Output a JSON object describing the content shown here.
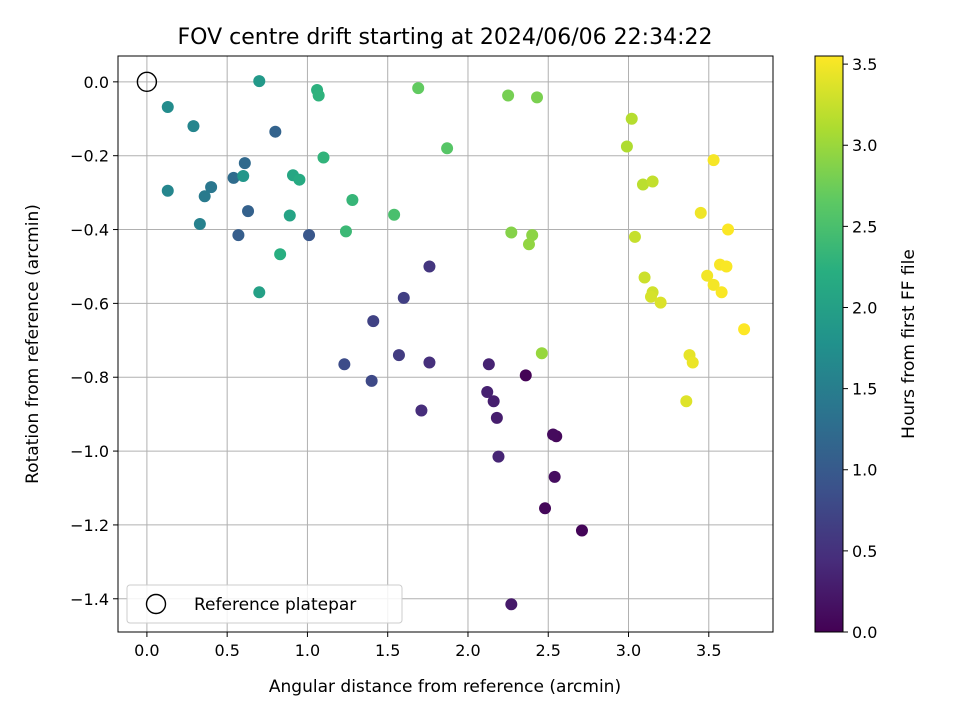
{
  "chart_data": {
    "type": "scatter",
    "title": "FOV centre drift starting at 2024/06/06 22:34:22",
    "xlabel": "Angular distance from reference (arcmin)",
    "ylabel": "Rotation from reference (arcmin)",
    "xlim": [
      -0.18,
      3.9
    ],
    "ylim": [
      -1.49,
      0.07
    ],
    "x_ticks": [
      0.0,
      0.5,
      1.0,
      1.5,
      2.0,
      2.5,
      3.0,
      3.5
    ],
    "x_tick_labels": [
      "0.0",
      "0.5",
      "1.0",
      "1.5",
      "2.0",
      "2.5",
      "3.0",
      "3.5"
    ],
    "y_ticks": [
      0.0,
      -0.2,
      -0.4,
      -0.6,
      -0.8,
      -1.0,
      -1.2,
      -1.4
    ],
    "y_tick_labels": [
      "0.0",
      "−0.2",
      "−0.4",
      "−0.6",
      "−0.8",
      "−1.0",
      "−1.2",
      "−1.4"
    ],
    "grid": true,
    "legend": {
      "placement": "lower-left",
      "label": "Reference platepar"
    },
    "reference_point": {
      "x": 0.0,
      "y": 0.0
    },
    "colorbar": {
      "label": "Hours from first FF file",
      "range": [
        0.0,
        3.55
      ],
      "colormap": "viridis",
      "ticks": [
        0.0,
        0.5,
        1.0,
        1.5,
        2.0,
        2.5,
        3.0,
        3.5
      ],
      "tick_labels": [
        "0.0",
        "0.5",
        "1.0",
        "1.5",
        "2.0",
        "2.5",
        "3.0",
        "3.5"
      ]
    },
    "points": [
      {
        "x": 2.36,
        "y": -0.795,
        "hours": 0.02
      },
      {
        "x": 2.71,
        "y": -1.215,
        "hours": 0.04
      },
      {
        "x": 2.48,
        "y": -1.155,
        "hours": 0.06
      },
      {
        "x": 2.55,
        "y": -0.96,
        "hours": 0.08
      },
      {
        "x": 2.53,
        "y": -0.955,
        "hours": 0.1
      },
      {
        "x": 2.54,
        "y": -1.07,
        "hours": 0.12
      },
      {
        "x": 2.27,
        "y": -1.415,
        "hours": 0.25
      },
      {
        "x": 2.18,
        "y": -0.91,
        "hours": 0.28
      },
      {
        "x": 2.16,
        "y": -0.865,
        "hours": 0.3
      },
      {
        "x": 2.12,
        "y": -0.84,
        "hours": 0.32
      },
      {
        "x": 2.13,
        "y": -0.765,
        "hours": 0.34
      },
      {
        "x": 2.19,
        "y": -1.015,
        "hours": 0.36
      },
      {
        "x": 1.71,
        "y": -0.89,
        "hours": 0.45
      },
      {
        "x": 1.76,
        "y": -0.76,
        "hours": 0.48
      },
      {
        "x": 1.76,
        "y": -0.5,
        "hours": 0.55
      },
      {
        "x": 1.57,
        "y": -0.74,
        "hours": 0.62
      },
      {
        "x": 1.6,
        "y": -0.585,
        "hours": 0.66
      },
      {
        "x": 1.41,
        "y": -0.648,
        "hours": 0.7
      },
      {
        "x": 1.4,
        "y": -0.81,
        "hours": 0.78
      },
      {
        "x": 1.23,
        "y": -0.765,
        "hours": 0.82
      },
      {
        "x": 1.01,
        "y": -0.415,
        "hours": 0.95
      },
      {
        "x": 0.57,
        "y": -0.415,
        "hours": 1.05
      },
      {
        "x": 0.63,
        "y": -0.35,
        "hours": 1.1
      },
      {
        "x": 0.8,
        "y": -0.135,
        "hours": 1.12
      },
      {
        "x": 0.61,
        "y": -0.22,
        "hours": 1.2
      },
      {
        "x": 0.54,
        "y": -0.26,
        "hours": 1.25
      },
      {
        "x": 0.4,
        "y": -0.285,
        "hours": 1.4
      },
      {
        "x": 0.36,
        "y": -0.31,
        "hours": 1.45
      },
      {
        "x": 0.33,
        "y": -0.385,
        "hours": 1.55
      },
      {
        "x": 0.29,
        "y": -0.12,
        "hours": 1.6
      },
      {
        "x": 0.13,
        "y": -0.295,
        "hours": 1.62
      },
      {
        "x": 0.13,
        "y": -0.068,
        "hours": 1.7
      },
      {
        "x": 0.6,
        "y": -0.255,
        "hours": 1.85
      },
      {
        "x": 0.7,
        "y": 0.002,
        "hours": 1.9
      },
      {
        "x": 0.7,
        "y": -0.57,
        "hours": 2.0
      },
      {
        "x": 0.89,
        "y": -0.362,
        "hours": 2.05
      },
      {
        "x": 0.91,
        "y": -0.253,
        "hours": 2.1
      },
      {
        "x": 0.95,
        "y": -0.265,
        "hours": 2.15
      },
      {
        "x": 0.83,
        "y": -0.467,
        "hours": 2.22
      },
      {
        "x": 1.06,
        "y": -0.022,
        "hours": 2.25
      },
      {
        "x": 1.07,
        "y": -0.037,
        "hours": 2.28
      },
      {
        "x": 1.1,
        "y": -0.205,
        "hours": 2.3
      },
      {
        "x": 1.28,
        "y": -0.32,
        "hours": 2.34
      },
      {
        "x": 1.24,
        "y": -0.405,
        "hours": 2.38
      },
      {
        "x": 1.54,
        "y": -0.36,
        "hours": 2.5
      },
      {
        "x": 1.87,
        "y": -0.18,
        "hours": 2.6
      },
      {
        "x": 1.69,
        "y": -0.017,
        "hours": 2.68
      },
      {
        "x": 2.25,
        "y": -0.037,
        "hours": 2.8
      },
      {
        "x": 2.43,
        "y": -0.042,
        "hours": 2.82
      },
      {
        "x": 2.27,
        "y": -0.408,
        "hours": 2.88
      },
      {
        "x": 2.4,
        "y": -0.415,
        "hours": 2.92
      },
      {
        "x": 2.38,
        "y": -0.44,
        "hours": 2.95
      },
      {
        "x": 2.46,
        "y": -0.735,
        "hours": 2.98
      },
      {
        "x": 2.99,
        "y": -0.175,
        "hours": 3.12
      },
      {
        "x": 3.02,
        "y": -0.1,
        "hours": 3.15
      },
      {
        "x": 3.09,
        "y": -0.278,
        "hours": 3.18
      },
      {
        "x": 3.15,
        "y": -0.27,
        "hours": 3.22
      },
      {
        "x": 3.04,
        "y": -0.42,
        "hours": 3.24
      },
      {
        "x": 3.1,
        "y": -0.53,
        "hours": 3.28
      },
      {
        "x": 3.15,
        "y": -0.57,
        "hours": 3.3
      },
      {
        "x": 3.14,
        "y": -0.582,
        "hours": 3.33
      },
      {
        "x": 3.2,
        "y": -0.598,
        "hours": 3.36
      },
      {
        "x": 3.36,
        "y": -0.865,
        "hours": 3.38
      },
      {
        "x": 3.38,
        "y": -0.74,
        "hours": 3.42
      },
      {
        "x": 3.4,
        "y": -0.76,
        "hours": 3.45
      },
      {
        "x": 3.45,
        "y": -0.355,
        "hours": 3.47
      },
      {
        "x": 3.49,
        "y": -0.525,
        "hours": 3.49
      },
      {
        "x": 3.53,
        "y": -0.55,
        "hours": 3.5
      },
      {
        "x": 3.53,
        "y": -0.212,
        "hours": 3.51
      },
      {
        "x": 3.57,
        "y": -0.495,
        "hours": 3.52
      },
      {
        "x": 3.58,
        "y": -0.57,
        "hours": 3.53
      },
      {
        "x": 3.61,
        "y": -0.5,
        "hours": 3.53
      },
      {
        "x": 3.62,
        "y": -0.4,
        "hours": 3.54
      },
      {
        "x": 3.72,
        "y": -0.67,
        "hours": 3.55
      }
    ]
  }
}
